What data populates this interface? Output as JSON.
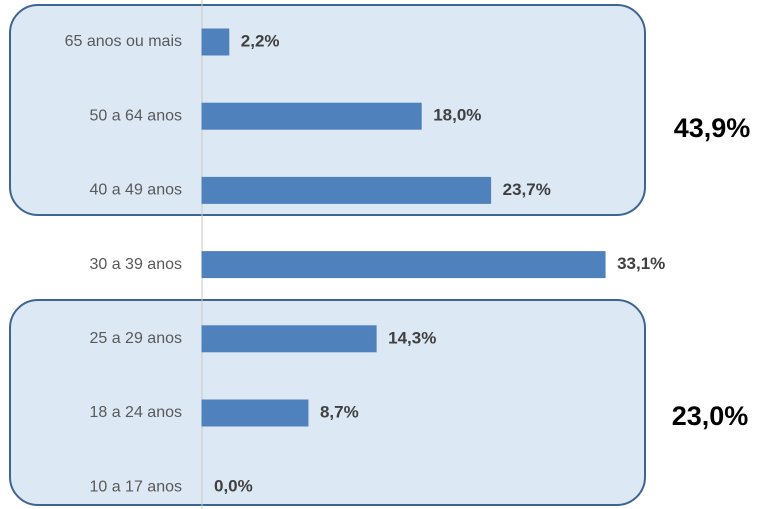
{
  "chart_data": {
    "type": "bar",
    "orientation": "horizontal",
    "categories": [
      "65 anos ou mais",
      "50 a 64 anos",
      "40 a 49 anos",
      "30 a 39 anos",
      "25 a 29 anos",
      "18 a 24 anos",
      "10 a 17 anos"
    ],
    "values": [
      2.2,
      18.0,
      23.7,
      33.1,
      14.3,
      8.7,
      0.0
    ],
    "value_labels": [
      "2,2%",
      "18,0%",
      "23,7%",
      "33,1%",
      "14,3%",
      "8,7%",
      "0,0%"
    ],
    "color": "#4f81bd",
    "xlim": [
      0,
      45
    ],
    "annotations": [
      "43,9%",
      "23,0%"
    ]
  }
}
